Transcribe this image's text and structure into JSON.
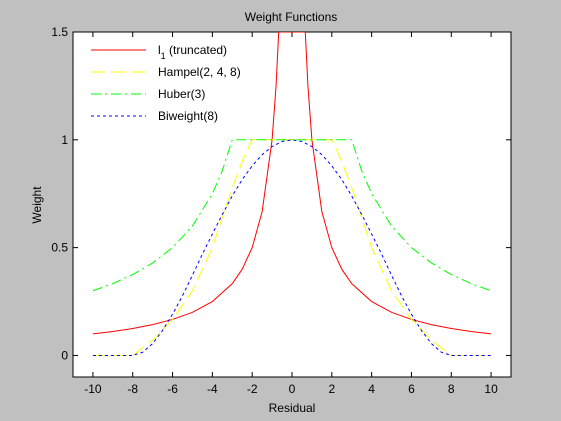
{
  "chart_data": {
    "type": "line",
    "title": "Weight Functions",
    "xlabel": "Residual",
    "ylabel": "Weight",
    "xlim": [
      -11,
      11
    ],
    "ylim": [
      -0.1,
      1.5
    ],
    "xticks": [
      -10,
      -8,
      -6,
      -4,
      -2,
      0,
      2,
      4,
      6,
      8,
      10
    ],
    "yticks": [
      0,
      0.5,
      1,
      1.5
    ],
    "yticklabels": [
      "0",
      "0.5",
      "1",
      "1.5"
    ],
    "grid": false,
    "legend_position": "top-left",
    "background_color": "#c0c0c0",
    "axes_color": "#ffffff",
    "series": [
      {
        "name": "l1 (truncated)",
        "legend_base": "l",
        "legend_sub": "1",
        "legend_suffix": " (truncated)",
        "color": "#ff0000",
        "dash": "",
        "x": [
          -10,
          -9,
          -8,
          -7,
          -6,
          -5,
          -4,
          -3,
          -2.5,
          -2,
          -1.5,
          -1,
          -0.8,
          -0.667,
          -0.5,
          0.5,
          0.667,
          0.8,
          1,
          1.5,
          2,
          2.5,
          3,
          4,
          5,
          6,
          7,
          8,
          9,
          10
        ],
        "y": [
          0.1,
          0.111,
          0.125,
          0.143,
          0.167,
          0.2,
          0.25,
          0.333,
          0.4,
          0.5,
          0.667,
          1.0,
          1.25,
          1.5,
          1.5,
          1.5,
          1.5,
          1.25,
          1.0,
          0.667,
          0.5,
          0.4,
          0.333,
          0.25,
          0.2,
          0.167,
          0.143,
          0.125,
          0.111,
          0.1
        ]
      },
      {
        "name": "Hampel(2, 4, 8)",
        "color": "#ffff00",
        "dash": "14,6",
        "x": [
          -10,
          -8,
          -7,
          -6,
          -5,
          -4,
          -3,
          -2.5,
          -2,
          2,
          2.5,
          3,
          4,
          5,
          6,
          7,
          8,
          10
        ],
        "y": [
          0,
          0,
          0.071,
          0.167,
          0.3,
          0.5,
          0.778,
          0.9,
          1.0,
          1.0,
          0.9,
          0.778,
          0.5,
          0.3,
          0.167,
          0.071,
          0,
          0
        ]
      },
      {
        "name": "Huber(3)",
        "color": "#00ff00",
        "dash": "10,4,2,4",
        "x": [
          -10,
          -9,
          -8,
          -7,
          -6,
          -5,
          -4,
          -3.5,
          -3,
          3,
          3.5,
          4,
          5,
          6,
          7,
          8,
          9,
          10
        ],
        "y": [
          0.3,
          0.333,
          0.375,
          0.429,
          0.5,
          0.6,
          0.75,
          0.857,
          1.0,
          1.0,
          0.857,
          0.75,
          0.6,
          0.5,
          0.429,
          0.375,
          0.333,
          0.3
        ]
      },
      {
        "name": "Biweight(8)",
        "color": "#0000ff",
        "dash": "3,3",
        "x": [
          -10,
          -8,
          -7.5,
          -7,
          -6.5,
          -6,
          -5.5,
          -5,
          -4.5,
          -4,
          -3.5,
          -3,
          -2.5,
          -2,
          -1.5,
          -1,
          -0.5,
          0,
          0.5,
          1,
          1.5,
          2,
          2.5,
          3,
          3.5,
          4,
          4.5,
          5,
          5.5,
          6,
          6.5,
          7,
          7.5,
          8,
          10
        ],
        "y": [
          0,
          0,
          0.015,
          0.055,
          0.116,
          0.191,
          0.277,
          0.372,
          0.47,
          0.563,
          0.654,
          0.74,
          0.816,
          0.879,
          0.931,
          0.969,
          0.992,
          1.0,
          0.992,
          0.969,
          0.931,
          0.879,
          0.816,
          0.74,
          0.654,
          0.563,
          0.47,
          0.372,
          0.277,
          0.191,
          0.116,
          0.055,
          0.015,
          0,
          0
        ]
      }
    ]
  }
}
